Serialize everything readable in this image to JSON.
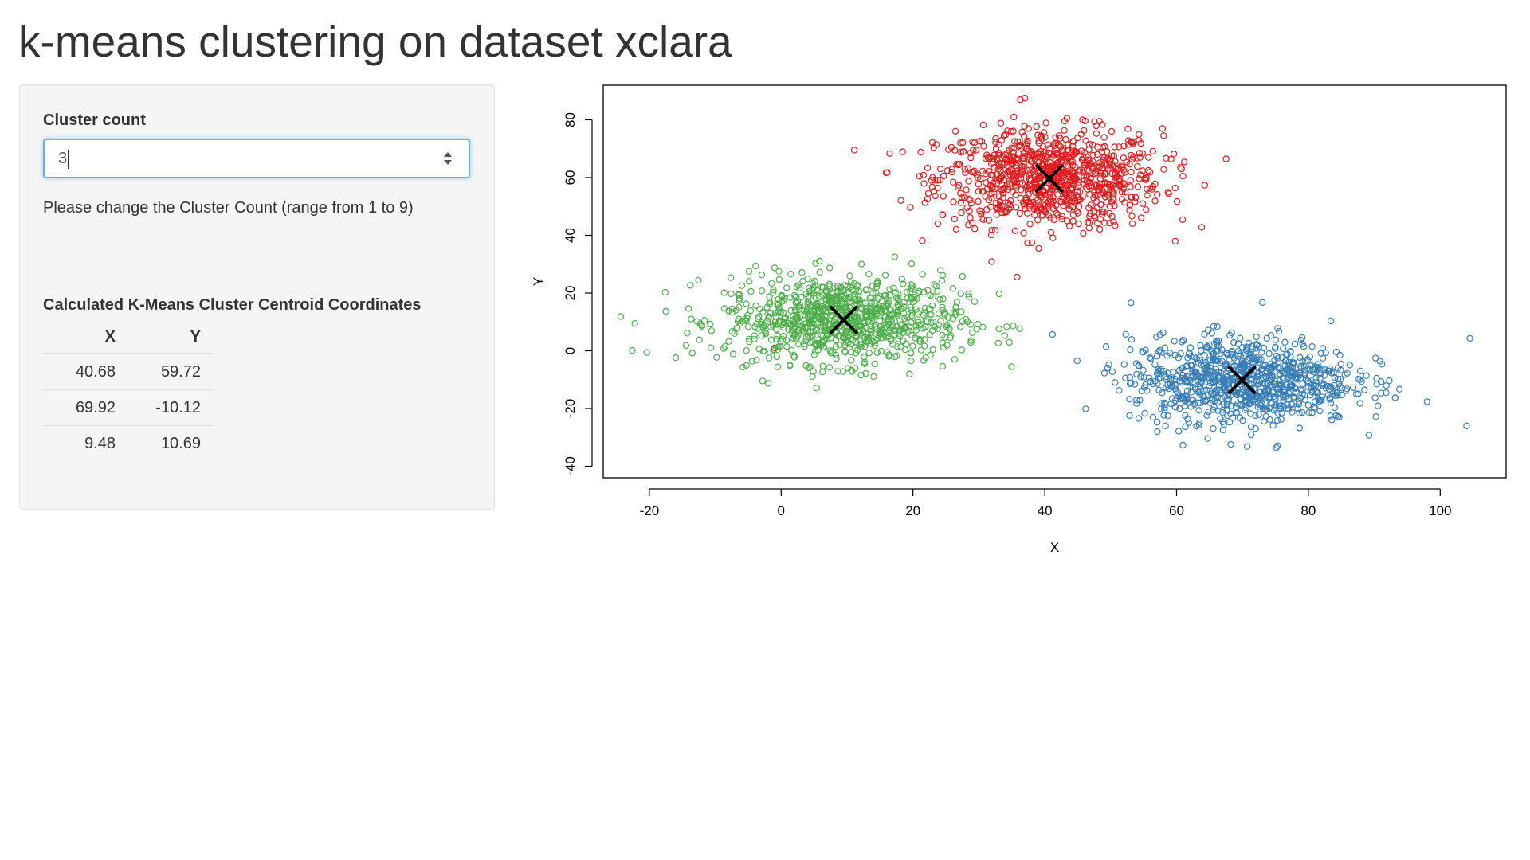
{
  "page": {
    "title": "k-means clustering on dataset xclara"
  },
  "sidebar": {
    "cluster_count_label": "Cluster count",
    "cluster_count_value": "3",
    "help_text": "Please change the Cluster Count (range from 1 to 9)",
    "table_title": "Calculated K-Means Cluster Centroid Coordinates",
    "table_headers": [
      "X",
      "Y"
    ],
    "table_rows": [
      [
        "40.68",
        "59.72"
      ],
      [
        "69.92",
        "-10.12"
      ],
      [
        "9.48",
        "10.69"
      ]
    ]
  },
  "chart_data": {
    "type": "scatter",
    "title": "",
    "xlabel": "X",
    "ylabel": "Y",
    "xlim": [
      -27,
      110
    ],
    "ylim": [
      -44,
      92
    ],
    "xticks": [
      -20,
      0,
      20,
      40,
      60,
      80,
      100
    ],
    "yticks": [
      -40,
      -20,
      0,
      20,
      40,
      60,
      80
    ],
    "grid": false,
    "legend": "none",
    "marker": "open-circle",
    "series": [
      {
        "color": "#e41a1c",
        "center": [
          40.68,
          59.72
        ],
        "spread": [
          8.5,
          8.5
        ],
        "count": 900,
        "points": [
          [
            36.3,
            87.0
          ],
          [
            -1,
            1
          ]
        ]
      },
      {
        "color": "#4daf4a",
        "center": [
          9.48,
          10.69
        ],
        "spread": [
          9.0,
          7.5
        ],
        "count": 900,
        "points": [
          [
            -22.2,
            9.5
          ],
          [
            -22.6,
            0.1
          ]
        ]
      },
      {
        "color": "#377eb8",
        "center": [
          69.92,
          -10.12
        ],
        "spread": [
          8.5,
          7.5
        ],
        "count": 900,
        "points": [
          [
            104.5,
            4.3
          ],
          [
            104.0,
            -26.0
          ]
        ]
      }
    ],
    "centroids": {
      "marker": "x",
      "color": "#000000",
      "points": [
        [
          40.68,
          59.72
        ],
        [
          69.92,
          -10.12
        ],
        [
          9.48,
          10.69
        ]
      ]
    }
  }
}
